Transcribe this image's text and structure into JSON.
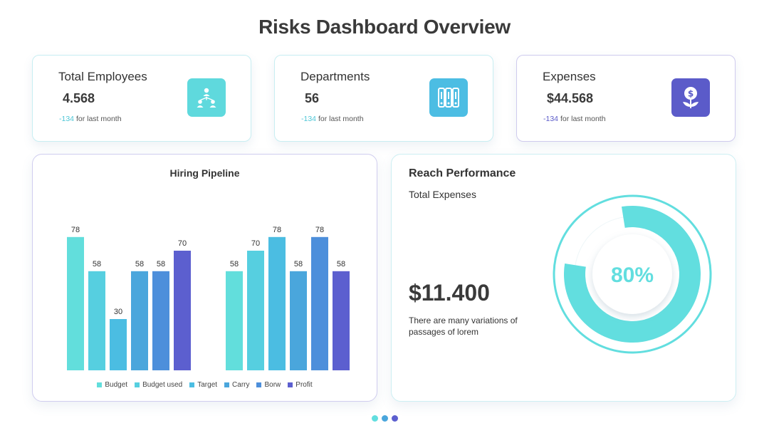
{
  "page": {
    "title": "Risks Dashboard Overview"
  },
  "kpis": [
    {
      "label": "Total Employees",
      "value": "4.568",
      "delta": "-134",
      "delta_suffix": "for last month",
      "icon": "team-hierarchy-icon",
      "icon_color": "#5fd9dd",
      "delta_color": "#4ec6d6"
    },
    {
      "label": "Departments",
      "value": "56",
      "delta": "-134",
      "delta_suffix": "for last month",
      "icon": "filing-cabinet-icon",
      "icon_color": "#4cbde3",
      "delta_color": "#4ec6d6"
    },
    {
      "label": "Expenses",
      "value": "$44.568",
      "delta": "-134",
      "delta_suffix": "for last month",
      "icon": "money-plant-icon",
      "icon_color": "#5b5bc9",
      "delta_color": "#5b5bc9"
    }
  ],
  "hiring": {
    "title": "Hiring Pipeline"
  },
  "chart_data": {
    "type": "bar",
    "title": "Hiring Pipeline",
    "groups": 2,
    "series": [
      {
        "name": "Budget",
        "color": "#62dedc",
        "values": [
          78,
          58
        ]
      },
      {
        "name": "Budget used",
        "color": "#56cfe0",
        "values": [
          58,
          70
        ]
      },
      {
        "name": "Target",
        "color": "#4bbde2",
        "values": [
          30,
          78
        ]
      },
      {
        "name": "Carry",
        "color": "#4aa6dc",
        "values": [
          58,
          58
        ]
      },
      {
        "name": "Borw",
        "color": "#4d8fdb",
        "values": [
          58,
          78
        ]
      },
      {
        "name": "Profit",
        "color": "#5c5fcf",
        "values": [
          70,
          58
        ]
      }
    ],
    "ylim": [
      0,
      100
    ],
    "legend": "bottom"
  },
  "reach": {
    "title": "Reach Performance",
    "subtitle": "Total Expenses",
    "value": "$11.400",
    "description": "There are many variations of passages of lorem",
    "percent_label": "80%",
    "percent": 0.8,
    "ring_color": "#62dedf"
  },
  "pager": {
    "dot_colors": [
      "#62dedf",
      "#4aa6dc",
      "#5c5fcf"
    ]
  }
}
